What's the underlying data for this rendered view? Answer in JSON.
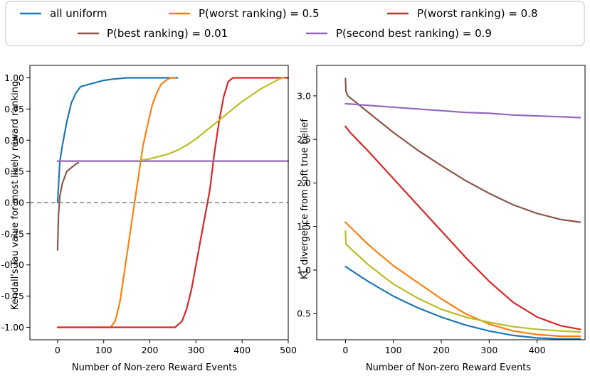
{
  "legend": {
    "entries": [
      {
        "label": "all uniform",
        "color": "#1f77b4"
      },
      {
        "label": "P(worst ranking) = 0.5",
        "color": "#ff7f0e"
      },
      {
        "label": "P(worst ranking) = 0.8",
        "color": "#d62728"
      },
      {
        "label": "P(best ranking) = 0.01",
        "color": "#8c564b"
      },
      {
        "label": "P(second best ranking) = 0.9",
        "color": "#9467bd"
      }
    ]
  },
  "chart_data": [
    {
      "type": "line",
      "title": "",
      "xlabel": "Number of Non-zero Reward Events",
      "ylabel": "Kendall's Tau value for most likely reward ranking",
      "xlim": [
        -60,
        500
      ],
      "ylim": [
        -1.1,
        1.1
      ],
      "xticks": [
        0,
        100,
        200,
        300,
        400,
        500
      ],
      "yticks": [
        -1.0,
        -0.75,
        -0.5,
        -0.25,
        0.0,
        0.25,
        0.5,
        0.75,
        1.0
      ],
      "ytick_labels": [
        "-1.00",
        "-0.75",
        "-0.50",
        "-0.25",
        "0.00",
        "0.25",
        "0.50",
        "0.75",
        "1.00"
      ],
      "reference_line": {
        "y": 0.0,
        "style": "dashed",
        "color": "#808080"
      },
      "grid": false,
      "series": [
        {
          "name": "all uniform",
          "color": "#1f77b4",
          "x": [
            0,
            5,
            10,
            20,
            30,
            40,
            50,
            60,
            70,
            80,
            100,
            120,
            150,
            200,
            260
          ],
          "y": [
            0.0,
            0.33,
            0.45,
            0.65,
            0.8,
            0.88,
            0.93,
            0.94,
            0.95,
            0.96,
            0.98,
            0.99,
            1.0,
            1.0,
            1.0
          ]
        },
        {
          "name": "P(worst ranking) = 0.5",
          "color": "#ff7f0e",
          "x": [
            0,
            115,
            125,
            135,
            145,
            155,
            165,
            175,
            185,
            195,
            205,
            215,
            225,
            235,
            245,
            255
          ],
          "y": [
            -1.0,
            -1.0,
            -0.95,
            -0.8,
            -0.55,
            -0.3,
            -0.05,
            0.2,
            0.45,
            0.62,
            0.78,
            0.88,
            0.95,
            0.98,
            1.0,
            1.0
          ]
        },
        {
          "name": "P(worst ranking) = 0.8",
          "color": "#d62728",
          "x": [
            0,
            255,
            270,
            280,
            290,
            300,
            310,
            320,
            330,
            340,
            350,
            360,
            370,
            380,
            400,
            500
          ],
          "y": [
            -1.0,
            -1.0,
            -0.95,
            -0.85,
            -0.7,
            -0.5,
            -0.3,
            -0.1,
            0.1,
            0.4,
            0.65,
            0.85,
            0.97,
            1.0,
            1.0,
            1.0
          ]
        },
        {
          "name": "P(best ranking) = 0.01",
          "color": "#8c564b",
          "x": [
            0,
            2,
            5,
            10,
            15,
            20,
            30,
            40,
            45
          ],
          "y": [
            -0.38,
            -0.1,
            0.05,
            0.15,
            0.2,
            0.25,
            0.28,
            0.31,
            0.32
          ]
        },
        {
          "name": "P(second best ranking) = 0.9",
          "color": "#9467bd",
          "x": [
            0,
            500
          ],
          "y": [
            0.333,
            0.333
          ]
        },
        {
          "name": "",
          "color": "#bcbd22",
          "x": [
            180,
            200,
            220,
            240,
            260,
            280,
            300,
            320,
            340,
            360,
            380,
            400,
            420,
            440,
            460,
            480,
            490
          ],
          "y": [
            0.34,
            0.35,
            0.37,
            0.39,
            0.42,
            0.46,
            0.51,
            0.57,
            0.63,
            0.69,
            0.75,
            0.81,
            0.86,
            0.91,
            0.95,
            0.99,
            1.0
          ]
        }
      ]
    },
    {
      "type": "line",
      "title": "",
      "xlabel": "Number of Non-zero Reward Events",
      "ylabel": "KL divergence from soft true belief",
      "xlim": [
        -60,
        500
      ],
      "ylim": [
        0.2,
        3.35
      ],
      "xticks": [
        0,
        100,
        200,
        300,
        400
      ],
      "yticks": [
        0.5,
        1.0,
        1.5,
        2.0,
        2.5,
        3.0
      ],
      "ytick_labels": [
        "0.5",
        "1.0",
        "1.5",
        "2.0",
        "2.5",
        "3.0"
      ],
      "grid": false,
      "series": [
        {
          "name": "all uniform",
          "color": "#1f77b4",
          "x": [
            0,
            50,
            100,
            150,
            200,
            250,
            300,
            350,
            400,
            450,
            490
          ],
          "y": [
            1.04,
            0.86,
            0.7,
            0.57,
            0.46,
            0.37,
            0.3,
            0.25,
            0.22,
            0.21,
            0.21
          ]
        },
        {
          "name": "P(worst ranking) = 0.5",
          "color": "#ff7f0e",
          "x": [
            0,
            50,
            100,
            150,
            200,
            250,
            300,
            350,
            400,
            450,
            490
          ],
          "y": [
            1.55,
            1.28,
            1.05,
            0.86,
            0.67,
            0.5,
            0.38,
            0.3,
            0.26,
            0.24,
            0.24
          ]
        },
        {
          "name": "P(worst ranking) = 0.8",
          "color": "#d62728",
          "x": [
            0,
            10,
            50,
            100,
            150,
            200,
            250,
            300,
            350,
            400,
            450,
            490
          ],
          "y": [
            2.65,
            2.58,
            2.35,
            2.05,
            1.75,
            1.45,
            1.15,
            0.87,
            0.63,
            0.46,
            0.36,
            0.32
          ]
        },
        {
          "name": "P(best ranking) = 0.01",
          "color": "#8c564b",
          "x": [
            0,
            1,
            5,
            50,
            100,
            150,
            200,
            250,
            300,
            350,
            400,
            450,
            490
          ],
          "y": [
            3.2,
            3.05,
            3.0,
            2.8,
            2.58,
            2.38,
            2.2,
            2.03,
            1.88,
            1.75,
            1.65,
            1.58,
            1.55
          ]
        },
        {
          "name": "P(second best ranking) = 0.9",
          "color": "#9467bd",
          "x": [
            0,
            50,
            100,
            150,
            200,
            250,
            300,
            350,
            400,
            450,
            490
          ],
          "y": [
            2.91,
            2.89,
            2.87,
            2.85,
            2.83,
            2.81,
            2.8,
            2.78,
            2.77,
            2.76,
            2.75
          ]
        },
        {
          "name": "",
          "color": "#bcbd22",
          "x": [
            0,
            1,
            10,
            50,
            100,
            150,
            200,
            250,
            300,
            350,
            400,
            450,
            490
          ],
          "y": [
            1.45,
            1.3,
            1.25,
            1.05,
            0.84,
            0.68,
            0.55,
            0.46,
            0.4,
            0.35,
            0.32,
            0.3,
            0.29
          ]
        }
      ]
    }
  ]
}
